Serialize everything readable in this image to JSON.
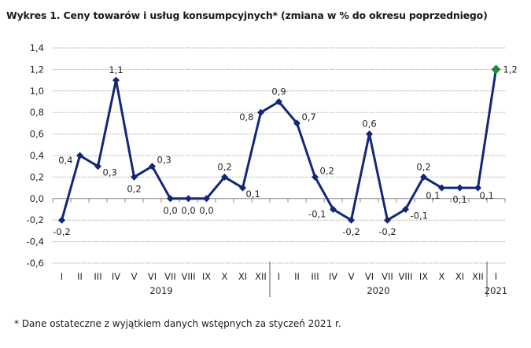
{
  "chart_data": {
    "type": "line",
    "title": "Wykres 1. Ceny towarów i usług konsumpcyjnych* (zmiana w % do okresu poprzedniego)",
    "footnote": "* Dane ostateczne z wyjątkiem danych wstępnych za styczeń 2021 r.",
    "categories": [
      "I",
      "II",
      "III",
      "IV",
      "V",
      "VI",
      "VII",
      "VIII",
      "IX",
      "X",
      "XI",
      "XII",
      "I",
      "II",
      "III",
      "IV",
      "V",
      "VI",
      "VII",
      "VIII",
      "IX",
      "X",
      "XI",
      "XII",
      "I"
    ],
    "year_groups": [
      {
        "label": "2019",
        "count": 12
      },
      {
        "label": "2020",
        "count": 12
      },
      {
        "label": "2021",
        "count": 1
      }
    ],
    "series": [
      {
        "values": [
          -0.2,
          0.4,
          0.3,
          1.1,
          0.2,
          0.3,
          0.0,
          0.0,
          0.0,
          0.2,
          0.1,
          0.8,
          0.9,
          0.7,
          0.2,
          -0.1,
          -0.2,
          0.6,
          -0.2,
          -0.1,
          0.2,
          0.1,
          0.1,
          0.1,
          1.2
        ]
      }
    ],
    "data_labels": [
      "-0,2",
      "0,4",
      "0,3",
      "1,1",
      "0,2",
      "0,3",
      "0,0",
      "0,0",
      "0,0",
      "0,2",
      "0,1",
      "0,8",
      "0,9",
      "0,7",
      "0,2",
      "-0,1",
      "-0,2",
      "0,6",
      "-0,2",
      "-0,1",
      "0,2",
      "0,1",
      "0,1",
      "0,1",
      "1,2"
    ],
    "yticks": [
      "1,4",
      "1,2",
      "1,0",
      "0,8",
      "0,6",
      "0,4",
      "0,2",
      "0,0",
      "-0,2",
      "-0,4",
      "-0,6"
    ],
    "ylim": [
      -0.6,
      1.4
    ],
    "grid": true,
    "line_color": "#13277a",
    "highlight_color": "#1e8a3c",
    "legend": "none"
  }
}
